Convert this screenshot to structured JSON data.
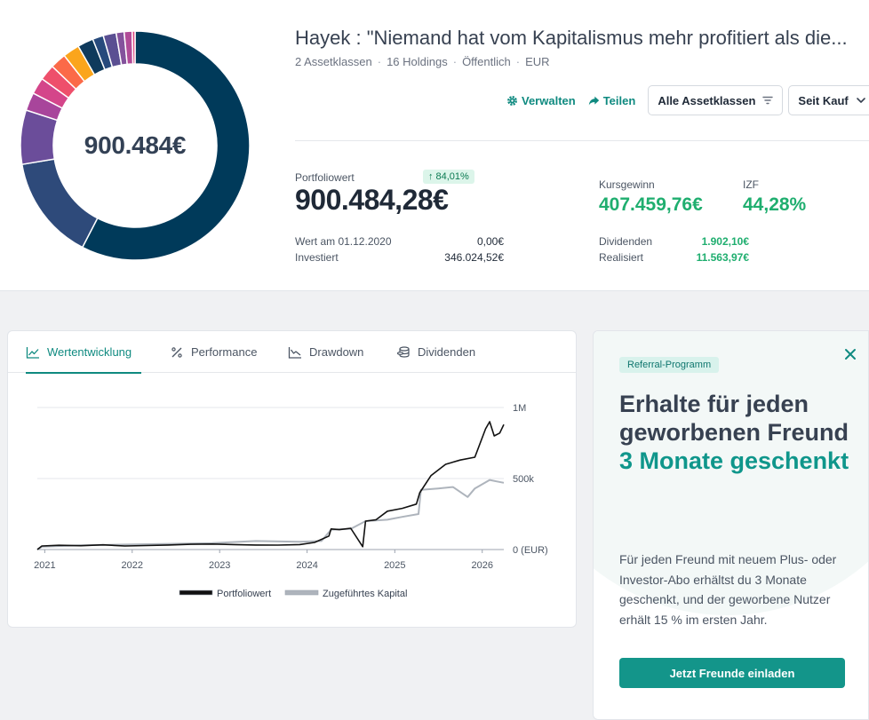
{
  "portfolio": {
    "title": "Hayek : \"Niemand hat vom Kapitalismus mehr profitiert als die...",
    "meta": [
      "2 Assetklassen",
      "16 Holdings",
      "Öffentlich",
      "EUR"
    ],
    "donut_center": "900.484€",
    "donut_segments": [
      {
        "value": 56.5,
        "color": "#003a5a"
      },
      {
        "value": 14.5,
        "color": "#2e4a7a"
      },
      {
        "value": 7.5,
        "color": "#6b4d9a"
      },
      {
        "value": 2.5,
        "color": "#a8459b"
      },
      {
        "value": 2.3,
        "color": "#d4458a"
      },
      {
        "value": 2.2,
        "color": "#ee4f6b"
      },
      {
        "value": 2.2,
        "color": "#fb6a48"
      },
      {
        "value": 2.3,
        "color": "#fba51c"
      },
      {
        "value": 2.2,
        "color": "#0f3a5c"
      },
      {
        "value": 1.5,
        "color": "#274a7c"
      },
      {
        "value": 1.8,
        "color": "#5a4f92"
      },
      {
        "value": 1.1,
        "color": "#84529c"
      },
      {
        "value": 1.1,
        "color": "#b14b98"
      },
      {
        "value": 0.4,
        "color": "#dd4b85"
      }
    ]
  },
  "actions": {
    "manage": "Verwalten",
    "share": "Teilen",
    "asset_filter": "Alle Assetklassen",
    "period": "Seit Kauf"
  },
  "stats": {
    "pv_label": "Portfoliowert",
    "pv_change": "84,01%",
    "pv_value": "900.484,28€",
    "start_label": "Wert am 01.12.2020",
    "start_value": "0,00€",
    "invested_label": "Investiert",
    "invested_value": "346.024,52€",
    "gain_label": "Kursgewinn",
    "gain_value": "407.459,76€",
    "izf_label": "IZF",
    "izf_value": "44,28%",
    "dividends_label": "Dividenden",
    "dividends_value": "1.902,10€",
    "realized_label": "Realisiert",
    "realized_value": "11.563,97€"
  },
  "tabs": [
    "Wertentwicklung",
    "Performance",
    "Drawdown",
    "Dividenden"
  ],
  "chart_data": {
    "type": "line",
    "y_tick_labels": [
      "1M",
      "500k",
      "0 (EUR)"
    ],
    "x_tick_labels": [
      "2021",
      "2022",
      "2023",
      "2024",
      "2025",
      "2026"
    ],
    "ylim": [
      0,
      1000000
    ],
    "grid": true,
    "legend_position": "bottom",
    "series": [
      {
        "name": "Portfoliowert",
        "color": "#111111",
        "points": [
          [
            "2020-12-01",
            0
          ],
          [
            "2020-12-20",
            25000
          ],
          [
            "2021-03-01",
            30000
          ],
          [
            "2021-06-01",
            27000
          ],
          [
            "2021-09-01",
            33000
          ],
          [
            "2021-12-01",
            25000
          ],
          [
            "2022-03-01",
            28000
          ],
          [
            "2022-06-01",
            32000
          ],
          [
            "2022-09-01",
            37000
          ],
          [
            "2022-12-01",
            39000
          ],
          [
            "2023-03-01",
            35000
          ],
          [
            "2023-06-01",
            32000
          ],
          [
            "2023-09-01",
            31000
          ],
          [
            "2023-12-01",
            35000
          ],
          [
            "2024-02-01",
            50000
          ],
          [
            "2024-04-01",
            95000
          ],
          [
            "2024-04-10",
            145000
          ],
          [
            "2024-05-15",
            140000
          ],
          [
            "2024-07-01",
            150000
          ],
          [
            "2024-08-20",
            20000
          ],
          [
            "2024-09-01",
            200000
          ],
          [
            "2024-10-15",
            210000
          ],
          [
            "2024-12-01",
            270000
          ],
          [
            "2025-02-01",
            290000
          ],
          [
            "2025-04-01",
            320000
          ],
          [
            "2025-04-15",
            400000
          ],
          [
            "2025-06-01",
            520000
          ],
          [
            "2025-08-01",
            600000
          ],
          [
            "2025-10-01",
            630000
          ],
          [
            "2025-12-01",
            650000
          ],
          [
            "2026-01-15",
            850000
          ],
          [
            "2026-02-01",
            900000
          ],
          [
            "2026-02-20",
            800000
          ],
          [
            "2026-03-15",
            820000
          ],
          [
            "2026-04-01",
            880000
          ]
        ]
      },
      {
        "name": "Zugeführtes Kapital",
        "color": "#aeb4bc",
        "points": [
          [
            "2020-12-01",
            0
          ],
          [
            "2020-12-20",
            20000
          ],
          [
            "2021-06-01",
            30000
          ],
          [
            "2021-12-01",
            35000
          ],
          [
            "2022-06-01",
            40000
          ],
          [
            "2022-12-01",
            45000
          ],
          [
            "2023-06-01",
            60000
          ],
          [
            "2023-12-01",
            55000
          ],
          [
            "2024-03-01",
            60000
          ],
          [
            "2024-04-10",
            140000
          ],
          [
            "2024-07-01",
            145000
          ],
          [
            "2024-09-01",
            200000
          ],
          [
            "2024-12-01",
            210000
          ],
          [
            "2025-02-01",
            230000
          ],
          [
            "2025-04-10",
            250000
          ],
          [
            "2025-04-20",
            420000
          ],
          [
            "2025-07-01",
            430000
          ],
          [
            "2025-09-01",
            440000
          ],
          [
            "2025-11-01",
            370000
          ],
          [
            "2025-12-01",
            430000
          ],
          [
            "2026-02-01",
            490000
          ],
          [
            "2026-03-01",
            480000
          ],
          [
            "2026-04-01",
            470000
          ]
        ]
      }
    ]
  },
  "referral": {
    "badge": "Referral-Programm",
    "headline": "Erhalte für jeden geworbenen Freund",
    "headline_accent": "3 Monate geschenkt",
    "body": "Für jeden Freund mit neuem Plus- oder Investor-Abo erhältst du 3 Monate geschenkt, und der geworbene Nutzer erhält 15 % im ersten Jahr.",
    "cta": "Jetzt Freunde einladen"
  }
}
